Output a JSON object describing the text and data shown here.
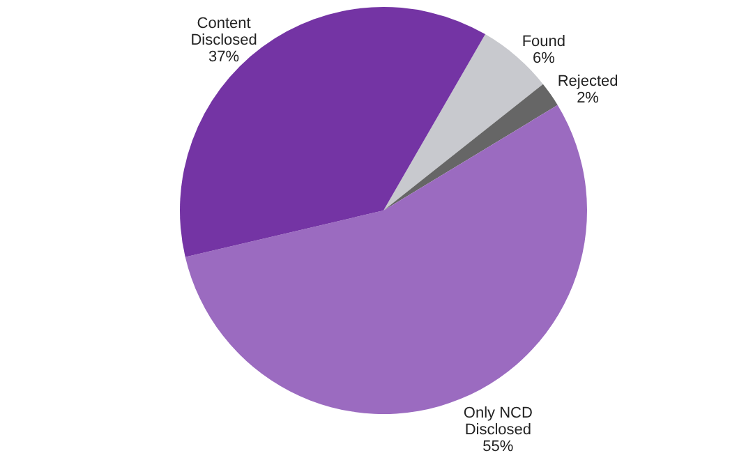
{
  "chart_data": {
    "type": "pie",
    "categories": [
      "Found",
      "Rejected",
      "Only NCD Disclosed",
      "Content Disclosed"
    ],
    "values": [
      6,
      2,
      55,
      37
    ],
    "colors": [
      "#c8c9ce",
      "#666666",
      "#9b6bc0",
      "#7434a4"
    ],
    "value_labels": [
      "6%",
      "2%",
      "55%",
      "37%"
    ],
    "legend": false
  }
}
